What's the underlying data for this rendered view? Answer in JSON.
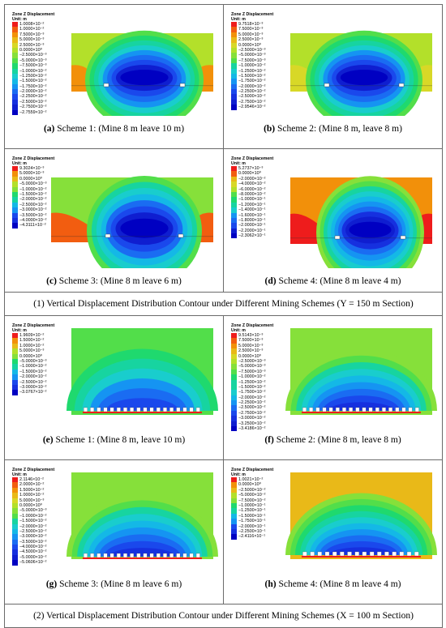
{
  "legend_title": "Zone Z Displacement",
  "legend_unit": "Unit: m",
  "sections": [
    {
      "title": "(1) Vertical Displacement Distribution Contour under Different Mining Schemes (Y = 150 m Section)"
    },
    {
      "title": "(2) Vertical Displacement Distribution Contour under Different Mining Schemes (X = 100 m Section)"
    }
  ],
  "panels": [
    {
      "letter": "(a)",
      "caption": " Scheme 1: (Mine 8 m leave 10 m)",
      "legend": [
        "1.0008×10⁻²",
        "1.0000×10⁻²",
        "7.5000×10⁻³",
        "5.0000×10⁻³",
        "2.5000×10⁻³",
        "0.0000×10⁰",
        "−2.5000×10⁻³",
        "−5.0000×10⁻³",
        "−7.5000×10⁻³",
        "−1.0000×10⁻²",
        "−1.2500×10⁻²",
        "−1.5000×10⁻²",
        "−1.7500×10⁻²",
        "−2.0000×10⁻²",
        "−2.2500×10⁻²",
        "−2.5000×10⁻²",
        "−2.7500×10⁻²",
        "−2.7559×10⁻²"
      ]
    },
    {
      "letter": "(b)",
      "caption": " Scheme 2: (Mine 8 m, leave 8 m)",
      "legend": [
        "9.7518×10⁻³",
        "7.5000×10⁻³",
        "5.0000×10⁻³",
        "2.5000×10⁻³",
        "0.0000×10⁰",
        "−2.5000×10⁻³",
        "−5.0000×10⁻³",
        "−7.5000×10⁻³",
        "−1.0000×10⁻²",
        "−1.2500×10⁻²",
        "−1.5000×10⁻²",
        "−1.7500×10⁻²",
        "−2.0000×10⁻²",
        "−2.2500×10⁻²",
        "−2.5000×10⁻²",
        "−2.7500×10⁻²",
        "−2.9546×10⁻²"
      ]
    },
    {
      "letter": "(c)",
      "caption": " Scheme 3: (Mine 8 m leave 6 m)",
      "legend": [
        "9.3024×10⁻³",
        "5.0000×10⁻³",
        "0.0000×10⁰",
        "−5.0000×10⁻³",
        "−1.0000×10⁻²",
        "−1.5000×10⁻²",
        "−2.0000×10⁻²",
        "−2.5000×10⁻²",
        "−3.0000×10⁻²",
        "−3.5000×10⁻²",
        "−4.0000×10⁻²",
        "−4.3111×10⁻²"
      ]
    },
    {
      "letter": "(d)",
      "caption": " Scheme 4: (Mine 8 m leave 4 m)",
      "legend": [
        "5.2737×10⁻³",
        "0.0000×10⁰",
        "−2.0000×10⁻²",
        "−4.0000×10⁻²",
        "−6.0000×10⁻²",
        "−8.0000×10⁻²",
        "−1.0000×10⁻¹",
        "−1.2000×10⁻¹",
        "−1.4000×10⁻¹",
        "−1.6000×10⁻¹",
        "−1.8000×10⁻¹",
        "−2.0000×10⁻¹",
        "−2.2000×10⁻¹",
        "−2.3062×10⁻¹"
      ]
    },
    {
      "letter": "(e)",
      "caption": " Scheme 1: (Mine 8 m, leave 10 m)",
      "legend": [
        "1.9609×10⁻²",
        "1.5000×10⁻²",
        "1.0000×10⁻²",
        "5.0000×10⁻³",
        "0.0000×10⁰",
        "−5.0000×10⁻³",
        "−1.0000×10⁻²",
        "−1.5000×10⁻²",
        "−2.0000×10⁻²",
        "−2.5000×10⁻²",
        "−3.0000×10⁻²",
        "−3.0767×10⁻²"
      ]
    },
    {
      "letter": "(f)",
      "caption": " Scheme 2: (Mine 8 m, leave 8 m)",
      "legend": [
        "9.5143×10⁻³",
        "7.5000×10⁻³",
        "5.0000×10⁻³",
        "2.5000×10⁻³",
        "0.0000×10⁰",
        "−2.5000×10⁻³",
        "−5.0000×10⁻³",
        "−7.5000×10⁻³",
        "−1.0000×10⁻²",
        "−1.2500×10⁻²",
        "−1.5000×10⁻²",
        "−1.7500×10⁻²",
        "−2.0000×10⁻²",
        "−2.2500×10⁻²",
        "−2.5000×10⁻²",
        "−2.7500×10⁻²",
        "−3.0000×10⁻²",
        "−3.2500×10⁻²",
        "−3.4186×10⁻²"
      ]
    },
    {
      "letter": "(g)",
      "caption": " Scheme 3: (Mine 8 m leave 6 m)",
      "legend": [
        "2.1146×10⁻²",
        "2.0000×10⁻²",
        "1.5000×10⁻²",
        "1.0000×10⁻²",
        "5.0000×10⁻³",
        "0.0000×10⁰",
        "−5.0000×10⁻³",
        "−1.0000×10⁻²",
        "−1.5000×10⁻²",
        "−2.0000×10⁻²",
        "−2.5000×10⁻²",
        "−3.0000×10⁻²",
        "−3.5000×10⁻²",
        "−4.0000×10⁻²",
        "−4.5000×10⁻²",
        "−5.0000×10⁻²",
        "−5.0606×10⁻²"
      ]
    },
    {
      "letter": "(h)",
      "caption": " Scheme 4: (Mine 8 m leave 4 m)",
      "legend": [
        "1.0021×10⁻²",
        "0.0000×10⁰",
        "−2.5000×10⁻²",
        "−5.0000×10⁻²",
        "−7.5000×10⁻²",
        "−1.0000×10⁻¹",
        "−1.2500×10⁻¹",
        "−1.5000×10⁻¹",
        "−1.7500×10⁻¹",
        "−2.0000×10⁻¹",
        "−2.2500×10⁻¹",
        "−2.4116×10⁻¹"
      ]
    }
  ]
}
